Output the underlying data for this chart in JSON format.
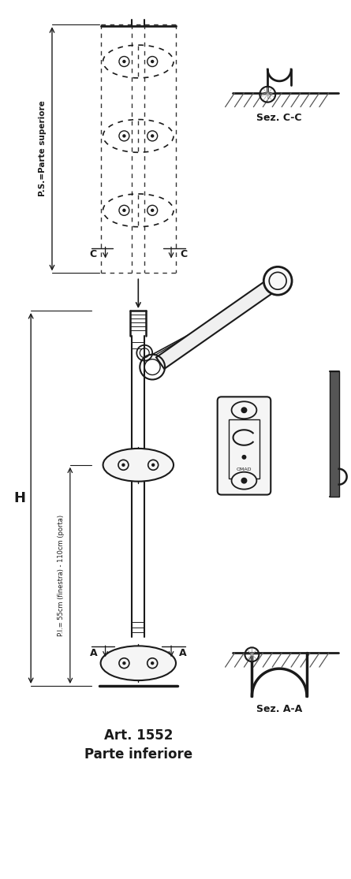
{
  "title1": "Art. 1552",
  "title2": "Parte inferiore",
  "label_ps": "P.S.=Parte superiore",
  "label_pi": "P.I.= 55cm (finestra) - 110cm (porta)",
  "label_H": "H",
  "label_C_left": "C",
  "label_C_right": "C",
  "label_A_left": "A",
  "label_A_right": "A",
  "label_sez_cc": "Sez. C-C",
  "label_sez_aa": "Sez. A-A",
  "bg_color": "#ffffff",
  "line_color": "#1a1a1a"
}
